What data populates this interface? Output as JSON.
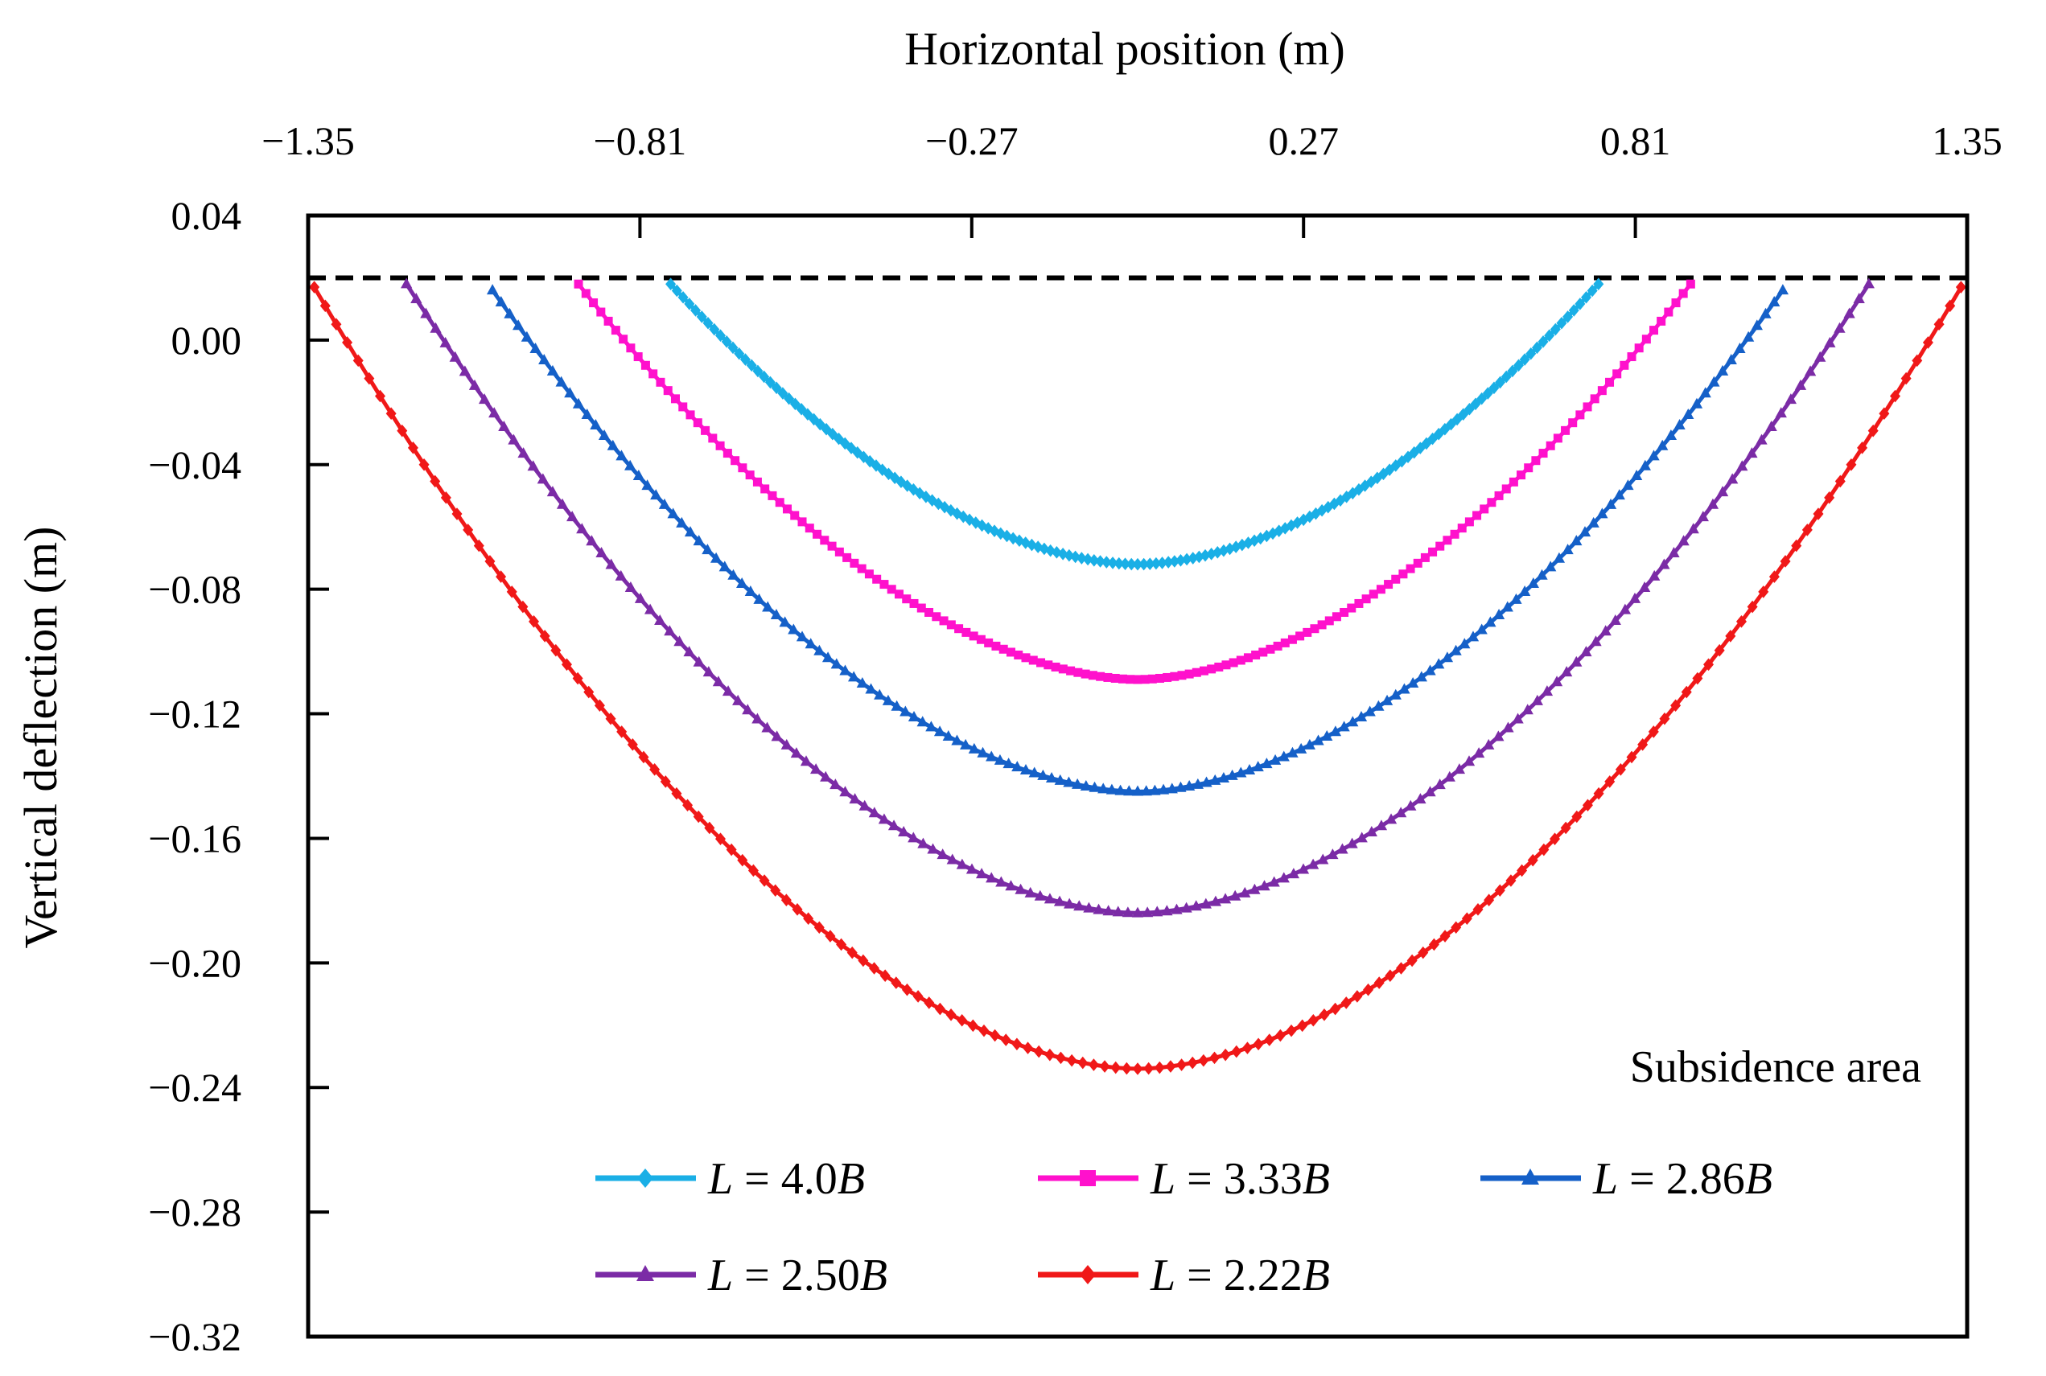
{
  "chart_data": {
    "type": "line",
    "title": "",
    "xlabel": "Horizontal position (m)",
    "ylabel": "Vertical deflection (m)",
    "x_axis_position": "top",
    "xlim": [
      -1.35,
      1.35
    ],
    "ylim": [
      -0.32,
      0.04
    ],
    "x_ticks": [
      -1.35,
      -0.81,
      -0.27,
      0.27,
      0.81,
      1.35
    ],
    "x_tick_labels": [
      "−1.35",
      "−0.81",
      "−0.27",
      "0.27",
      "0.81",
      "1.35"
    ],
    "y_ticks": [
      0.04,
      0.0,
      -0.04,
      -0.08,
      -0.12,
      -0.16,
      -0.2,
      -0.24,
      -0.28,
      -0.32
    ],
    "y_tick_labels": [
      "0.04",
      "0.00",
      "−0.04",
      "−0.08",
      "−0.12",
      "−0.16",
      "−0.20",
      "−0.24",
      "−0.28",
      "−0.32"
    ],
    "grid": false,
    "reference_line": {
      "y": 0.02,
      "style": "dashed",
      "color": "#000000"
    },
    "annotation": "Subsidence area",
    "legend_position": "bottom-center",
    "series": [
      {
        "name": "L = 4.0B",
        "name_parts": [
          "L",
          " = 4.0",
          "B"
        ],
        "color": "#1AAFE6",
        "marker": "diamond",
        "x_start": -0.76,
        "x_end": 0.75,
        "y_start": 0.018,
        "y_end": 0.018,
        "y_min": -0.072,
        "x_min": 0.0
      },
      {
        "name": "L = 3.33B",
        "name_parts": [
          "L",
          " = 3.33",
          "B"
        ],
        "color": "#FF11CC",
        "marker": "square",
        "x_start": -0.91,
        "x_end": 0.9,
        "y_start": 0.018,
        "y_end": 0.018,
        "y_min": -0.109,
        "x_min": 0.0
      },
      {
        "name": "L = 2.86B",
        "name_parts": [
          "L",
          " = 2.86",
          "B"
        ],
        "color": "#1560C8",
        "marker": "triangle",
        "x_start": -1.05,
        "x_end": 1.05,
        "y_start": 0.016,
        "y_end": 0.016,
        "y_min": -0.145,
        "x_min": 0.0
      },
      {
        "name": "L = 2.50B",
        "name_parts": [
          "L",
          " = 2.50",
          "B"
        ],
        "color": "#7B2BA6",
        "marker": "triangle",
        "x_start": -1.19,
        "x_end": 1.19,
        "y_start": 0.018,
        "y_end": 0.018,
        "y_min": -0.184,
        "x_min": 0.0
      },
      {
        "name": "L = 2.22B",
        "name_parts": [
          "L",
          " = 2.22",
          "B"
        ],
        "color": "#F01818",
        "marker": "diamond",
        "x_start": -1.34,
        "x_end": 1.34,
        "y_start": 0.017,
        "y_end": 0.017,
        "y_min": -0.234,
        "x_min": 0.0
      }
    ]
  }
}
